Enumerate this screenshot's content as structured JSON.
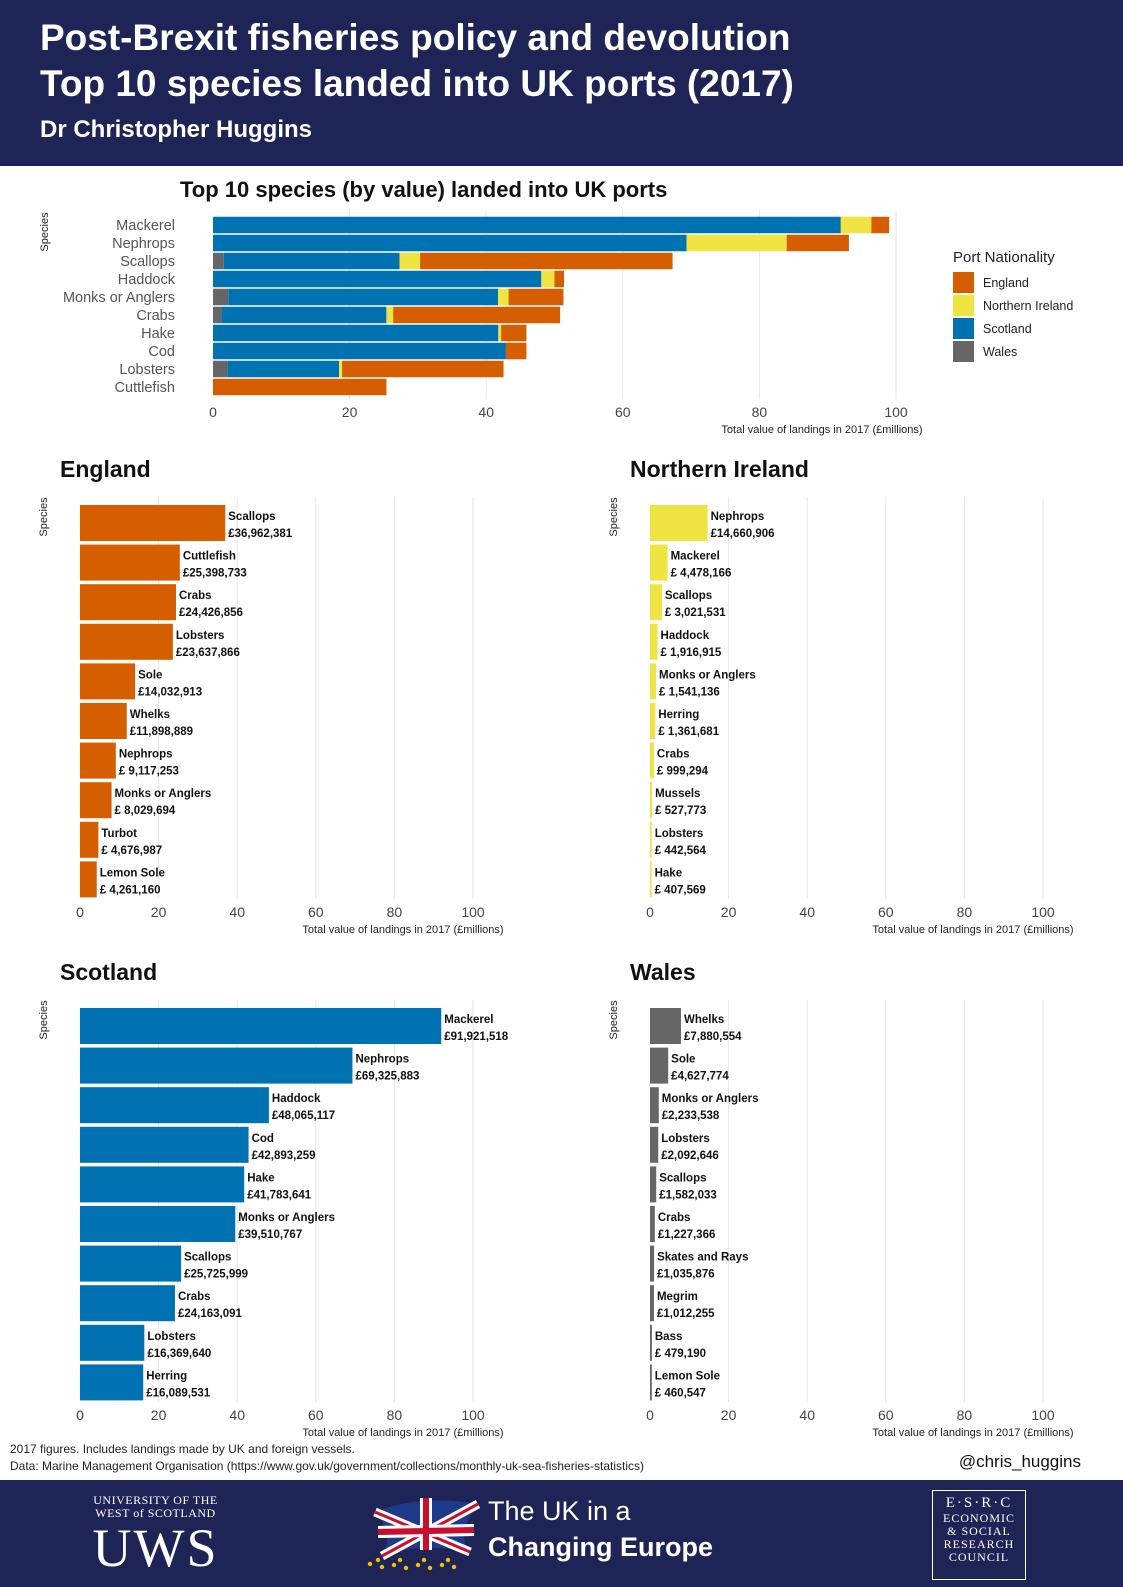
{
  "header": {
    "title_line1": "Post-Brexit fisheries policy and devolution",
    "title_line2": "Top 10 species landed into UK ports (2017)",
    "author": "Dr Christopher Huggins"
  },
  "colors": {
    "England": "#d55e00",
    "Northern Ireland": "#f0e442",
    "Scotland": "#0072b2",
    "Wales": "#666666"
  },
  "legend": {
    "title": "Port Nationality",
    "items": [
      "England",
      "Northern Ireland",
      "Scotland",
      "Wales"
    ]
  },
  "chart_data": [
    {
      "type": "bar",
      "orientation": "horizontal",
      "stacked": true,
      "title": "Top 10 species (by value) landed into UK ports",
      "xlabel": "Total value of landings in 2017 (£millions)",
      "ylabel": "Species",
      "xlim": [
        0,
        100
      ],
      "xticks": [
        0,
        20,
        40,
        60,
        80,
        100
      ],
      "stack_order": [
        "Wales",
        "Scotland",
        "Northern Ireland",
        "England"
      ],
      "categories": [
        "Mackerel",
        "Nephrops",
        "Scallops",
        "Haddock",
        "Monks or Anglers",
        "Crabs",
        "Hake",
        "Cod",
        "Lobsters",
        "Cuttlefish"
      ],
      "series": [
        {
          "name": "Wales",
          "values": [
            0,
            0,
            1.58,
            0,
            2.23,
            1.23,
            0,
            0,
            2.09,
            0
          ]
        },
        {
          "name": "Scotland",
          "values": [
            91.92,
            69.33,
            25.73,
            48.07,
            39.51,
            24.16,
            41.78,
            42.89,
            16.37,
            0
          ]
        },
        {
          "name": "Northern Ireland",
          "values": [
            4.48,
            14.66,
            3.02,
            1.92,
            1.54,
            1.0,
            0.41,
            0,
            0.44,
            0
          ]
        },
        {
          "name": "England",
          "values": [
            2.6,
            9.12,
            36.96,
            1.4,
            8.03,
            24.43,
            3.7,
            3.0,
            23.64,
            25.4
          ]
        }
      ]
    },
    {
      "type": "bar",
      "orientation": "horizontal",
      "title": "England",
      "color": "#d55e00",
      "xlabel": "Total value of landings in 2017 (£millions)",
      "ylabel": "Species",
      "xlim": [
        0,
        100
      ],
      "xticks": [
        0,
        20,
        40,
        60,
        80,
        100
      ],
      "categories": [
        "Scallops",
        "Cuttlefish",
        "Crabs",
        "Lobsters",
        "Sole",
        "Whelks",
        "Nephrops",
        "Monks or Anglers",
        "Turbot",
        "Lemon Sole"
      ],
      "values": [
        36.962381,
        25.398733,
        24.426856,
        23.637866,
        14.032913,
        11.898889,
        9.117253,
        8.029694,
        4.676987,
        4.26116
      ],
      "labels": [
        "£36,962,381",
        "£25,398,733",
        "£24,426,856",
        "£23,637,866",
        "£14,032,913",
        "£11,898,889",
        "£ 9,117,253",
        "£ 8,029,694",
        "£ 4,676,987",
        "£ 4,261,160"
      ]
    },
    {
      "type": "bar",
      "orientation": "horizontal",
      "title": "Northern Ireland",
      "color": "#f0e442",
      "xlabel": "Total value of landings in 2017 (£millions)",
      "ylabel": "Species",
      "xlim": [
        0,
        100
      ],
      "xticks": [
        0,
        20,
        40,
        60,
        80,
        100
      ],
      "categories": [
        "Nephrops",
        "Mackerel",
        "Scallops",
        "Haddock",
        "Monks or Anglers",
        "Herring",
        "Crabs",
        "Mussels",
        "Lobsters",
        "Hake"
      ],
      "values": [
        14.660906,
        4.478166,
        3.021531,
        1.916915,
        1.541136,
        1.361681,
        0.999294,
        0.527773,
        0.442564,
        0.407569
      ],
      "labels": [
        "£14,660,906",
        "£ 4,478,166",
        "£ 3,021,531",
        "£ 1,916,915",
        "£ 1,541,136",
        "£ 1,361,681",
        "£   999,294",
        "£   527,773",
        "£   442,564",
        "£   407,569"
      ]
    },
    {
      "type": "bar",
      "orientation": "horizontal",
      "title": "Scotland",
      "color": "#0072b2",
      "xlabel": "Total value of landings in 2017 (£millions)",
      "ylabel": "Species",
      "xlim": [
        0,
        100
      ],
      "xticks": [
        0,
        20,
        40,
        60,
        80,
        100
      ],
      "categories": [
        "Mackerel",
        "Nephrops",
        "Haddock",
        "Cod",
        "Hake",
        "Monks or Anglers",
        "Scallops",
        "Crabs",
        "Lobsters",
        "Herring"
      ],
      "values": [
        91.921518,
        69.325883,
        48.065117,
        42.893259,
        41.783641,
        39.510767,
        25.725999,
        24.163091,
        16.36964,
        16.089531
      ],
      "labels": [
        "£91,921,518",
        "£69,325,883",
        "£48,065,117",
        "£42,893,259",
        "£41,783,641",
        "£39,510,767",
        "£25,725,999",
        "£24,163,091",
        "£16,369,640",
        "£16,089,531"
      ]
    },
    {
      "type": "bar",
      "orientation": "horizontal",
      "title": "Wales",
      "color": "#666666",
      "xlabel": "Total value of landings in 2017 (£millions)",
      "ylabel": "Species",
      "xlim": [
        0,
        100
      ],
      "xticks": [
        0,
        20,
        40,
        60,
        80,
        100
      ],
      "categories": [
        "Whelks",
        "Sole",
        "Monks or Anglers",
        "Lobsters",
        "Scallops",
        "Crabs",
        "Skates and Rays",
        "Megrim",
        "Bass",
        "Lemon Sole"
      ],
      "values": [
        7.880554,
        4.627774,
        2.233538,
        2.092646,
        1.582033,
        1.227366,
        1.035876,
        1.012255,
        0.47919,
        0.460547
      ],
      "labels": [
        "£7,880,554",
        "£4,627,774",
        "£2,233,538",
        "£2,092,646",
        "£1,582,033",
        "£1,227,366",
        "£1,035,876",
        "£1,012,255",
        "£ 479,190",
        "£ 460,547"
      ]
    }
  ],
  "footnotes": {
    "line1": "2017 figures. Includes landings made by UK and foreign vessels.",
    "line2": "Data: Marine Management Organisation (https://www.gov.uk/government/collections/monthly-uk-sea-fisheries-statistics)",
    "handle": "@chris_huggins"
  },
  "footer": {
    "uws_line1": "UNIVERSITY OF THE",
    "uws_line2": "WEST of SCOTLAND",
    "uws_mark": "UWS",
    "ukice_line1": "The UK in a",
    "ukice_line2": "Changing Europe",
    "esrc_mark": "E·S·R·C",
    "esrc_l1": "ECONOMIC",
    "esrc_l2": "& SOCIAL",
    "esrc_l3": "RESEARCH",
    "esrc_l4": "COUNCIL"
  }
}
